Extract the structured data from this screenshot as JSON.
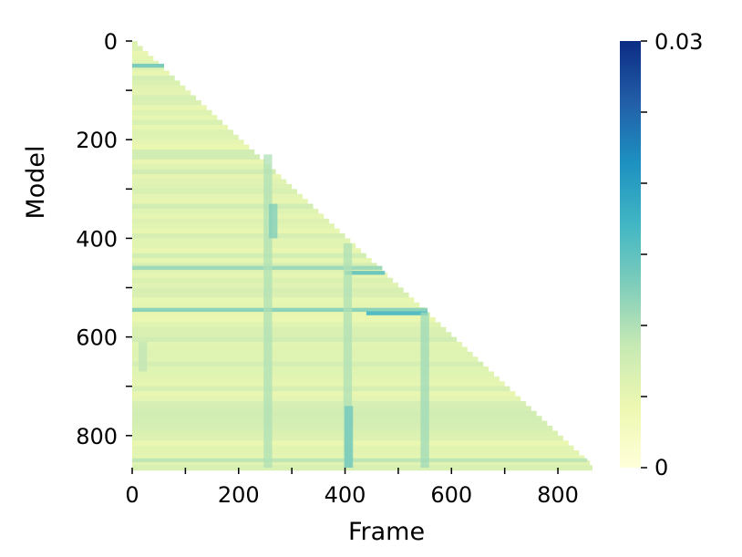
{
  "chart_data": {
    "type": "heatmap",
    "title": "",
    "xlabel": "Frame",
    "ylabel": "Model",
    "shape": "lower-triangular",
    "xlim": [
      0,
      865
    ],
    "ylim": [
      0,
      865
    ],
    "y_inverted": true,
    "x_ticks": [
      0,
      100,
      200,
      300,
      400,
      500,
      600,
      700,
      800
    ],
    "x_tick_labels": [
      "0",
      "",
      "200",
      "",
      "400",
      "",
      "600",
      "",
      "800"
    ],
    "y_ticks": [
      0,
      100,
      200,
      300,
      400,
      500,
      600,
      700,
      800
    ],
    "y_tick_labels": [
      "0",
      "",
      "200",
      "",
      "400",
      "",
      "600",
      "",
      "800"
    ],
    "colormap": "YlGnBu",
    "colormap_stops": [
      "#ffffd9",
      "#edf8b1",
      "#c7e9b4",
      "#7fcdbb",
      "#41b6c4",
      "#1d91c0",
      "#225ea8",
      "#0c2c84"
    ],
    "colorbar": {
      "min": 0,
      "max": 0.03,
      "tick_values": [
        0,
        0.005,
        0.01,
        0.015,
        0.02,
        0.025,
        0.03
      ],
      "label_min": "0",
      "label_max": "0.03"
    },
    "base_value": 0.006,
    "horizontal_bands": [
      {
        "model": 50,
        "frame_start": 0,
        "frame_end": 60,
        "value": 0.013
      },
      {
        "model": 460,
        "frame_start": 0,
        "frame_end": 470,
        "value": 0.011
      },
      {
        "model": 470,
        "frame_start": 400,
        "frame_end": 475,
        "value": 0.014
      },
      {
        "model": 545,
        "frame_start": 0,
        "frame_end": 555,
        "value": 0.012
      },
      {
        "model": 552,
        "frame_start": 440,
        "frame_end": 555,
        "value": 0.016
      },
      {
        "model": 850,
        "frame_start": 0,
        "frame_end": 855,
        "value": 0.009
      }
    ],
    "vertical_bands": [
      {
        "frame": 255,
        "model_start": 230,
        "model_end": 865,
        "value": 0.01
      },
      {
        "frame": 265,
        "model_start": 330,
        "model_end": 400,
        "value": 0.013
      },
      {
        "frame": 405,
        "model_start": 410,
        "model_end": 865,
        "value": 0.01
      },
      {
        "frame": 407,
        "model_start": 740,
        "model_end": 865,
        "value": 0.014
      },
      {
        "frame": 550,
        "model_start": 550,
        "model_end": 865,
        "value": 0.011
      },
      {
        "frame": 20,
        "model_start": 610,
        "model_end": 670,
        "value": 0.009
      }
    ]
  }
}
